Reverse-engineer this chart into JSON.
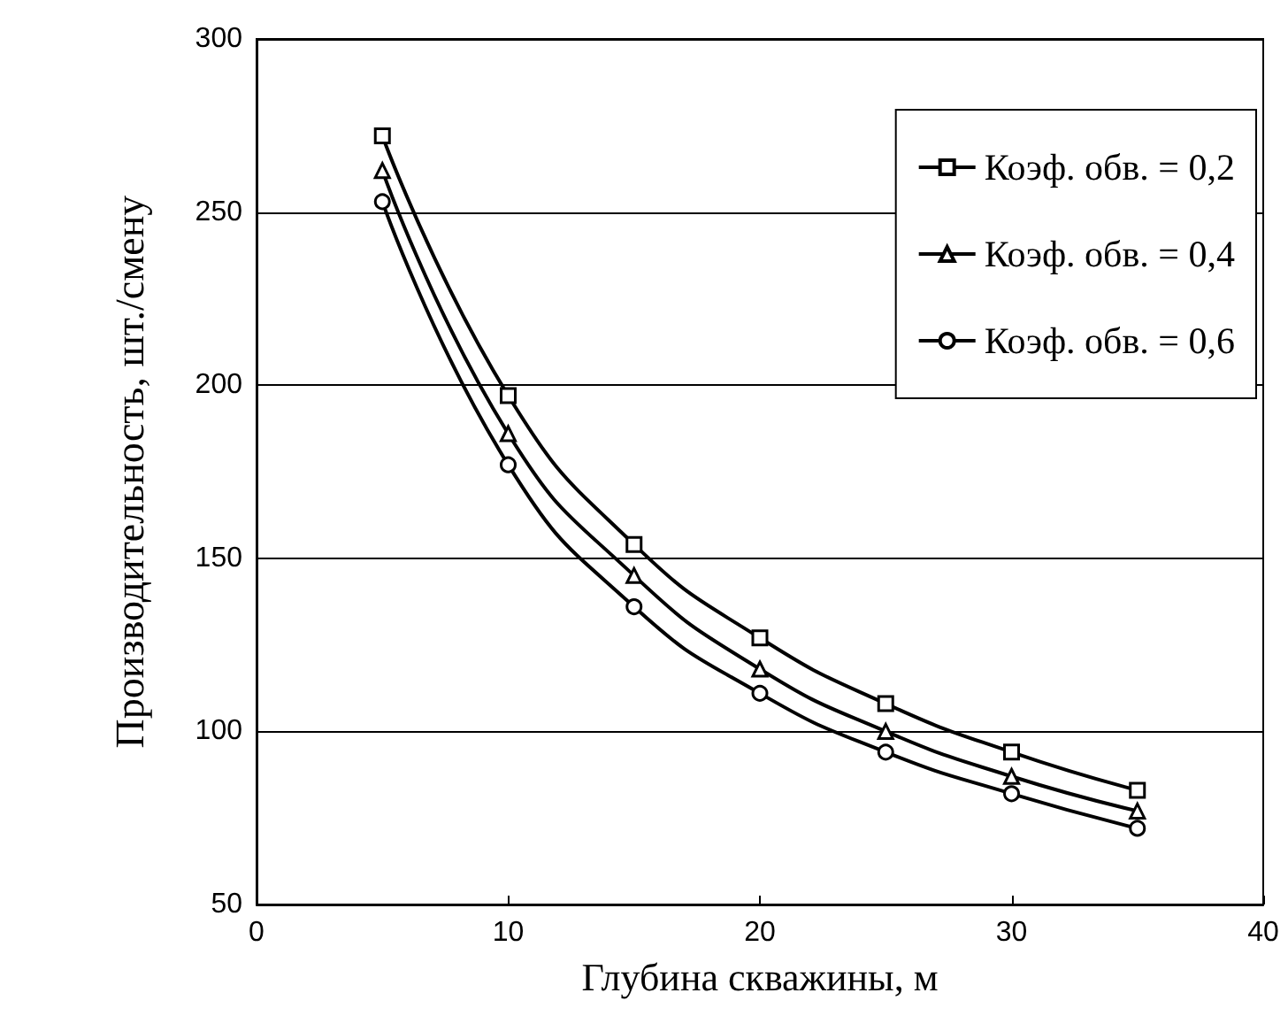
{
  "chart_data": {
    "type": "line",
    "xlabel": "Глубина скважины, м",
    "ylabel": "Производительность, шт./смену",
    "x": [
      5,
      10,
      15,
      20,
      25,
      30,
      35
    ],
    "xlim": [
      0,
      40
    ],
    "xticks": [
      0,
      10,
      20,
      30,
      40
    ],
    "ylim": [
      50,
      300
    ],
    "yticks": [
      50,
      100,
      150,
      200,
      250,
      300
    ],
    "grid": "y",
    "legend": "top right",
    "line_style": "solid",
    "series": [
      {
        "name": "Коэф. обв. = 0,2",
        "color": "#000000",
        "marker": "square",
        "values": [
          272,
          197,
          154,
          127,
          108,
          94,
          83
        ]
      },
      {
        "name": "Коэф. обв. = 0,4",
        "color": "#000000",
        "marker": "triangle",
        "values": [
          262,
          186,
          145,
          118,
          100,
          87,
          77
        ]
      },
      {
        "name": "Коэф. обв. = 0,6",
        "color": "#000000",
        "marker": "circle",
        "values": [
          253,
          177,
          136,
          111,
          94,
          82,
          72
        ]
      }
    ]
  }
}
